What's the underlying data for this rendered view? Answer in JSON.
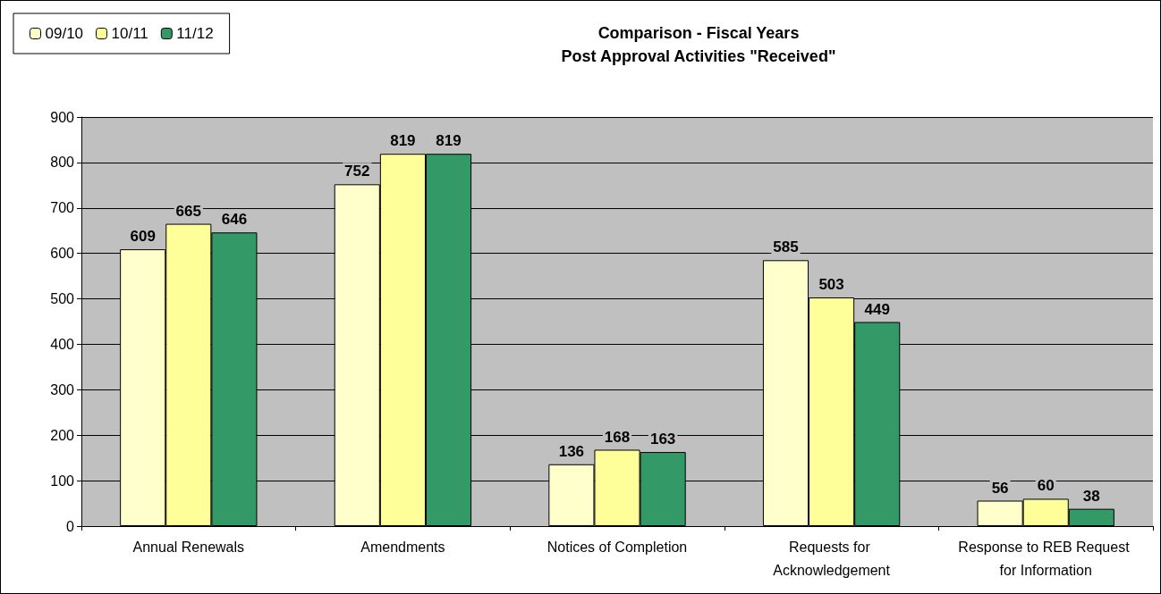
{
  "chart_data": {
    "type": "bar",
    "title": "Comparison - Fiscal Years\nPost Approval Activities \"Received\"",
    "categories": [
      "Annual Renewals",
      "Amendments",
      "Notices of Completion",
      "Requests for Acknowledgement",
      "Response to REB Request for Information"
    ],
    "series": [
      {
        "name": "09/10",
        "color": "#ffffcc",
        "values": [
          609,
          752,
          136,
          585,
          56
        ]
      },
      {
        "name": "10/11",
        "color": "#ffff99",
        "values": [
          665,
          819,
          168,
          503,
          60
        ]
      },
      {
        "name": "11/12",
        "color": "#339966",
        "values": [
          646,
          819,
          163,
          449,
          38
        ]
      }
    ],
    "ylim": [
      0,
      900
    ],
    "yticks": [
      0,
      100,
      200,
      300,
      400,
      500,
      600,
      700,
      800,
      900
    ],
    "grid": "y",
    "legend": "top left",
    "data_labels": true
  }
}
